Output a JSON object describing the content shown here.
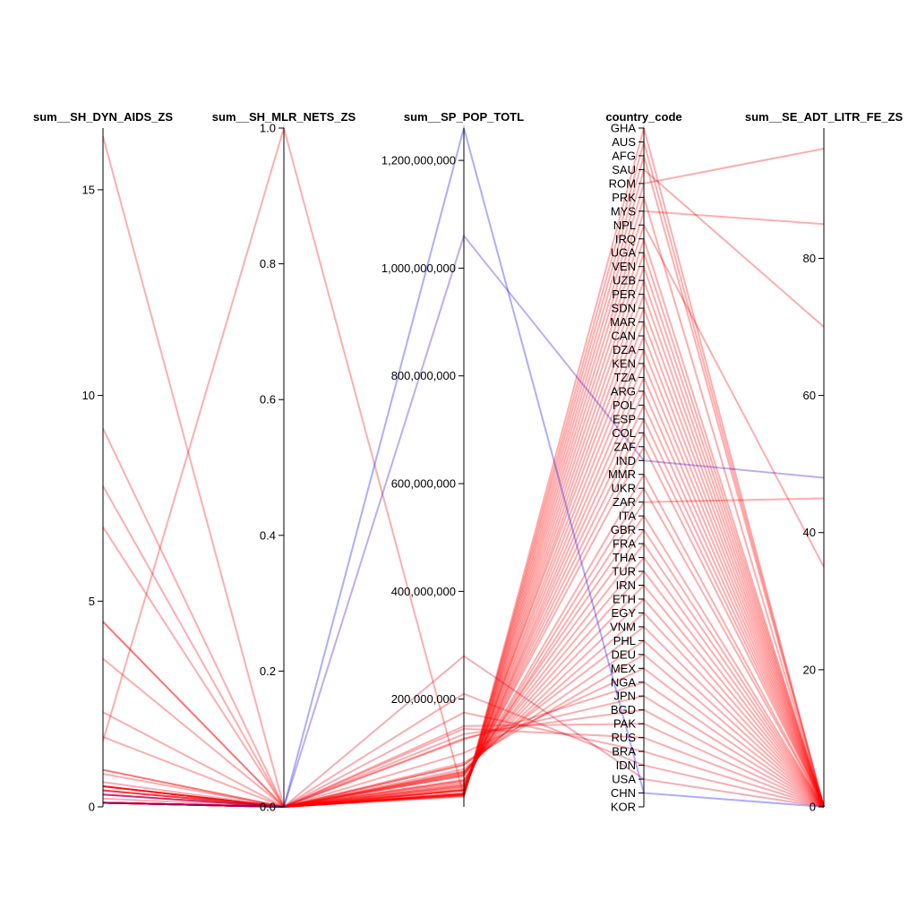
{
  "chart_data": {
    "type": "parallel_coordinates",
    "axes": [
      {
        "key": "aids",
        "title": "sum__SH_DYN_AIDS_ZS",
        "range": [
          0,
          16.5
        ],
        "ticks": [
          0,
          5,
          10,
          15
        ],
        "tick_labels": [
          "0",
          "5",
          "10",
          "15"
        ]
      },
      {
        "key": "nets",
        "title": "sum__SH_MLR_NETS_ZS",
        "range": [
          0,
          1.0
        ],
        "ticks": [
          0,
          0.2,
          0.4,
          0.6,
          0.8,
          1.0
        ],
        "tick_labels": [
          "0.0",
          "0.2",
          "0.4",
          "0.6",
          "0.8",
          "1.0"
        ]
      },
      {
        "key": "pop",
        "title": "sum__SP_POP_TOTL",
        "range": [
          0,
          1260000000
        ],
        "ticks": [
          200000000,
          400000000,
          600000000,
          800000000,
          1000000000,
          1200000000
        ],
        "tick_labels": [
          "200,000,000",
          "400,000,000",
          "600,000,000",
          "800,000,000",
          "1,000,000,000",
          "1,200,000,000"
        ]
      },
      {
        "key": "country",
        "title": "country_code",
        "categorical": true
      },
      {
        "key": "litr",
        "title": "sum__SE_ADT_LITR_FE_ZS",
        "range": [
          0,
          99
        ],
        "ticks": [
          0,
          20,
          40,
          60,
          80
        ],
        "tick_labels": [
          "0",
          "20",
          "40",
          "60",
          "80"
        ]
      }
    ],
    "categories": [
      "GHA",
      "AUS",
      "AFG",
      "SAU",
      "ROM",
      "PRK",
      "MYS",
      "NPL",
      "IRQ",
      "UGA",
      "VEN",
      "UZB",
      "PER",
      "SDN",
      "MAR",
      "CAN",
      "DZA",
      "KEN",
      "TZA",
      "ARG",
      "POL",
      "ESP",
      "COL",
      "ZAF",
      "IND",
      "MMR",
      "UKR",
      "ZAR",
      "ITA",
      "GBR",
      "FRA",
      "THA",
      "TUR",
      "IRN",
      "ETH",
      "EGY",
      "VNM",
      "PHL",
      "DEU",
      "MEX",
      "NGA",
      "JPN",
      "BGD",
      "PAK",
      "RUS",
      "BRA",
      "IDN",
      "USA",
      "CHN",
      "KOR"
    ],
    "color_scale": {
      "low": "#ff0000",
      "high": "#0000ff",
      "metric": "sum__SP_POP_TOTL"
    },
    "records": [
      {
        "country": "CHN",
        "aids": 0.1,
        "nets": 0,
        "pop": 1260000000,
        "litr": 0
      },
      {
        "country": "IND",
        "aids": 0.3,
        "nets": 0,
        "pop": 1060000000,
        "litr": 48
      },
      {
        "country": "USA",
        "aids": 0.6,
        "nets": 0,
        "pop": 280000000,
        "litr": 0
      },
      {
        "country": "IDN",
        "aids": 0.1,
        "nets": 0,
        "pop": 210000000,
        "litr": 0
      },
      {
        "country": "BRA",
        "aids": 0.5,
        "nets": 0,
        "pop": 175000000,
        "litr": 0
      },
      {
        "country": "RUS",
        "aids": 0.9,
        "nets": 0,
        "pop": 145000000,
        "litr": 0
      },
      {
        "country": "PAK",
        "aids": 0.1,
        "nets": 0,
        "pop": 150000000,
        "litr": 0
      },
      {
        "country": "BGD",
        "aids": 0.1,
        "nets": 0,
        "pop": 135000000,
        "litr": 0
      },
      {
        "country": "JPN",
        "aids": 0.1,
        "nets": 0,
        "pop": 127000000,
        "litr": 0
      },
      {
        "country": "NGA",
        "aids": 3.6,
        "nets": 0,
        "pop": 125000000,
        "litr": 0
      },
      {
        "country": "MEX",
        "aids": 0.3,
        "nets": 0,
        "pop": 100000000,
        "litr": 0
      },
      {
        "country": "DEU",
        "aids": 0.1,
        "nets": 0,
        "pop": 82000000,
        "litr": 0
      },
      {
        "country": "PHL",
        "aids": 0.1,
        "nets": 0,
        "pop": 78000000,
        "litr": 0
      },
      {
        "country": "VNM",
        "aids": 0.3,
        "nets": 0,
        "pop": 78000000,
        "litr": 0
      },
      {
        "country": "EGY",
        "aids": 0.1,
        "nets": 0,
        "pop": 70000000,
        "litr": 0
      },
      {
        "country": "ETH",
        "aids": 4.5,
        "nets": 0,
        "pop": 66000000,
        "litr": 0
      },
      {
        "country": "IRN",
        "aids": 0.1,
        "nets": 0,
        "pop": 65000000,
        "litr": 0
      },
      {
        "country": "TUR",
        "aids": 0.1,
        "nets": 0,
        "pop": 63000000,
        "litr": 0
      },
      {
        "country": "THA",
        "aids": 1.7,
        "nets": 0,
        "pop": 62000000,
        "litr": 0
      },
      {
        "country": "FRA",
        "aids": 0.4,
        "nets": 0,
        "pop": 59000000,
        "litr": 0
      },
      {
        "country": "GBR",
        "aids": 0.2,
        "nets": 0,
        "pop": 59000000,
        "litr": 0
      },
      {
        "country": "ITA",
        "aids": 0.4,
        "nets": 0,
        "pop": 57000000,
        "litr": 0
      },
      {
        "country": "ZAR",
        "aids": 4.5,
        "nets": 0,
        "pop": 50000000,
        "litr": 45
      },
      {
        "country": "UKR",
        "aids": 0.9,
        "nets": 0,
        "pop": 49000000,
        "litr": 0
      },
      {
        "country": "MMR",
        "aids": 0.8,
        "nets": 0,
        "pop": 47000000,
        "litr": 0
      },
      {
        "country": "ZAF",
        "aids": 16.3,
        "nets": 0,
        "pop": 44000000,
        "litr": 0
      },
      {
        "country": "COL",
        "aids": 0.5,
        "nets": 0,
        "pop": 41000000,
        "litr": 0
      },
      {
        "country": "ESP",
        "aids": 0.5,
        "nets": 0,
        "pop": 40000000,
        "litr": 0
      },
      {
        "country": "POL",
        "aids": 0.1,
        "nets": 0,
        "pop": 38000000,
        "litr": 0
      },
      {
        "country": "ARG",
        "aids": 0.5,
        "nets": 0,
        "pop": 37000000,
        "litr": 0
      },
      {
        "country": "TZA",
        "aids": 7.8,
        "nets": 0,
        "pop": 34000000,
        "litr": 0
      },
      {
        "country": "KEN",
        "aids": 9.2,
        "nets": 0,
        "pop": 31000000,
        "litr": 0
      },
      {
        "country": "DZA",
        "aids": 0.1,
        "nets": 0,
        "pop": 31000000,
        "litr": 0
      },
      {
        "country": "CAN",
        "aids": 0.3,
        "nets": 0,
        "pop": 31000000,
        "litr": 0
      },
      {
        "country": "MAR",
        "aids": 0.1,
        "nets": 0,
        "pop": 30000000,
        "litr": 0
      },
      {
        "country": "SDN",
        "aids": 2.3,
        "nets": 0,
        "pop": 32000000,
        "litr": 0
      },
      {
        "country": "PER",
        "aids": 0.4,
        "nets": 0,
        "pop": 26000000,
        "litr": 0
      },
      {
        "country": "UZB",
        "aids": 0.1,
        "nets": 0,
        "pop": 25000000,
        "litr": 0
      },
      {
        "country": "VEN",
        "aids": 0.5,
        "nets": 0,
        "pop": 24000000,
        "litr": 0
      },
      {
        "country": "UGA",
        "aids": 6.8,
        "nets": 0,
        "pop": 24000000,
        "litr": 0
      },
      {
        "country": "IRQ",
        "aids": 0.1,
        "nets": 0,
        "pop": 24000000,
        "litr": 0
      },
      {
        "country": "NPL",
        "aids": 0.5,
        "nets": 0,
        "pop": 24000000,
        "litr": 35
      },
      {
        "country": "MYS",
        "aids": 0.4,
        "nets": 0,
        "pop": 23000000,
        "litr": 85
      },
      {
        "country": "PRK",
        "aids": 0.1,
        "nets": 0,
        "pop": 22000000,
        "litr": 0
      },
      {
        "country": "ROM",
        "aids": 0.1,
        "nets": 0,
        "pop": 22000000,
        "litr": 96
      },
      {
        "country": "SAU",
        "aids": 0.1,
        "nets": 0,
        "pop": 21000000,
        "litr": 70
      },
      {
        "country": "AFG",
        "aids": 0.1,
        "nets": 0,
        "pop": 21000000,
        "litr": 0
      },
      {
        "country": "AUS",
        "aids": 0.1,
        "nets": 0,
        "pop": 19000000,
        "litr": 0
      },
      {
        "country": "GHA",
        "aids": 1.6,
        "nets": 1.0,
        "pop": 20000000,
        "litr": 0
      }
    ]
  }
}
